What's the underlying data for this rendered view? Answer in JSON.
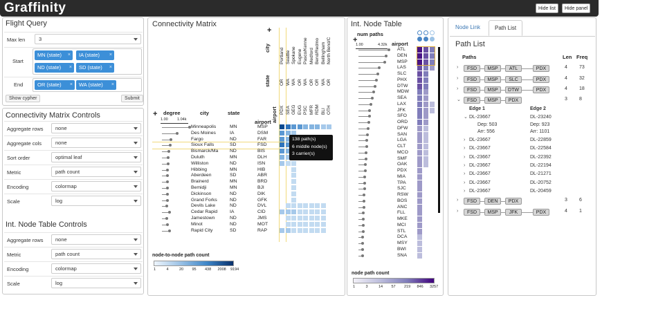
{
  "app": {
    "title": "Graffinity",
    "hide_list": "Hide list",
    "hide_panel": "Hide panel"
  },
  "flight_query": {
    "title": "Flight Query",
    "max_len_label": "Max len",
    "max_len_value": "3",
    "start_label": "Start",
    "start_tags": [
      "MN (state)",
      "IA (state)",
      "ND (state)",
      "SD (state)"
    ],
    "end_label": "End",
    "end_tags": [
      "OR (state)",
      "WA (state)"
    ],
    "show_cypher": "Show cypher",
    "submit": "Submit"
  },
  "cm_controls": {
    "title": "Connectivity Matrix Controls",
    "rows": [
      {
        "label": "Aggregate rows",
        "value": "none"
      },
      {
        "label": "Aggregate cols",
        "value": "none"
      },
      {
        "label": "Sort order",
        "value": "optimal leaf"
      },
      {
        "label": "Metric",
        "value": "path count"
      },
      {
        "label": "Encoding",
        "value": "colormap"
      },
      {
        "label": "Scale",
        "value": "log"
      }
    ]
  },
  "int_controls": {
    "title": "Int. Node Table Controls",
    "rows": [
      {
        "label": "Aggregate rows",
        "value": "none"
      },
      {
        "label": "Metric",
        "value": "path count"
      },
      {
        "label": "Encoding",
        "value": "colormap"
      },
      {
        "label": "Scale",
        "value": "log"
      }
    ]
  },
  "matrix": {
    "title": "Connectivity Matrix",
    "col_headers": {
      "city": "city",
      "state": "state",
      "airport": "airport"
    },
    "columns": [
      {
        "city": "Portland",
        "state": "OR",
        "airport": "PDX"
      },
      {
        "city": "Seattle",
        "state": "WA",
        "airport": "SEA"
      },
      {
        "city": "Spokane",
        "state": "WA",
        "airport": "GEG"
      },
      {
        "city": "Eugene",
        "state": "OR",
        "airport": "EUG"
      },
      {
        "city": "Pasco/Kenne",
        "state": "WA",
        "airport": "PSC"
      },
      {
        "city": "Medford",
        "state": "OR",
        "airport": "MFR"
      },
      {
        "city": "Bend/Redmo",
        "state": "OR",
        "airport": "RDM"
      },
      {
        "city": "Bellingham",
        "state": "WA",
        "airport": "BLI"
      },
      {
        "city": "North Bend/C",
        "state": "OR",
        "airport": "OTH"
      }
    ],
    "row_headers": {
      "degree": "degree",
      "city": "city",
      "state": "state",
      "airport": "airport"
    },
    "degree_ticks": [
      "1.00",
      "1.04k"
    ],
    "rows": [
      {
        "city": "Minneapolis",
        "state": "MN",
        "airport": "MSP",
        "deg": 1.0
      },
      {
        "city": "Des Moines",
        "state": "IA",
        "airport": "DSM",
        "deg": 0.5
      },
      {
        "city": "Fargo",
        "state": "ND",
        "airport": "FAR",
        "deg": 0.25
      },
      {
        "city": "Sioux Falls",
        "state": "SD",
        "airport": "FSD",
        "deg": 0.22
      },
      {
        "city": "Bismarck/Ma",
        "state": "ND",
        "airport": "BIS",
        "deg": 0.18
      },
      {
        "city": "Duluth",
        "state": "MN",
        "airport": "DLH",
        "deg": 0.15
      },
      {
        "city": "Williston",
        "state": "ND",
        "airport": "ISN",
        "deg": 0.14
      },
      {
        "city": "Hibbing",
        "state": "MN",
        "airport": "HIB",
        "deg": 0.12
      },
      {
        "city": "Aberdeen",
        "state": "SD",
        "airport": "ABR",
        "deg": 0.12
      },
      {
        "city": "Brainerd",
        "state": "MN",
        "airport": "BRD",
        "deg": 0.1
      },
      {
        "city": "Bemidji",
        "state": "MN",
        "airport": "BJI",
        "deg": 0.1
      },
      {
        "city": "Dickinson",
        "state": "ND",
        "airport": "DIK",
        "deg": 0.1
      },
      {
        "city": "Grand Forks",
        "state": "ND",
        "airport": "GFK",
        "deg": 0.1
      },
      {
        "city": "Devils Lake",
        "state": "ND",
        "airport": "DVL",
        "deg": 0.09
      },
      {
        "city": "Cedar Rapid",
        "state": "IA",
        "airport": "CID",
        "deg": 0.2
      },
      {
        "city": "Jamestown",
        "state": "ND",
        "airport": "JMS",
        "deg": 0.09
      },
      {
        "city": "Minot",
        "state": "ND",
        "airport": "MOT",
        "deg": 0.12
      },
      {
        "city": "Rapid City",
        "state": "SD",
        "airport": "RAP",
        "deg": 0.2
      }
    ],
    "tooltip": [
      "138 path(s)",
      "6 middle node(s)",
      "3 carrier(s)"
    ],
    "legend_title": "node-to-node path count",
    "legend_ticks": [
      "1",
      "4",
      "20",
      "95",
      "438",
      "2008",
      "9194"
    ]
  },
  "int_table": {
    "title": "Int. Node Table",
    "header": "num paths",
    "ticks": [
      "1.00",
      "4.32k"
    ],
    "airport_header": "airport",
    "airports": [
      "ATL",
      "DEN",
      "MSP",
      "LAS",
      "SLC",
      "PHX",
      "DTW",
      "MDW",
      "SEA",
      "LAX",
      "JFK",
      "SFO",
      "ORD",
      "DFW",
      "SAN",
      "LGA",
      "CLT",
      "MCO",
      "SMF",
      "OAK",
      "PDX",
      "MIA",
      "TPA",
      "SJC",
      "RSW",
      "BOS",
      "ANC",
      "FLL",
      "MKE",
      "MCI",
      "STL",
      "DCA",
      "MSY",
      "BWI",
      "SNA"
    ],
    "legend_title": "node path count",
    "legend_ticks": [
      "1",
      "3",
      "14",
      "57",
      "219",
      "846",
      "3257"
    ]
  },
  "path_list": {
    "tabs": [
      "Node Link",
      "Path List"
    ],
    "title": "Path List",
    "col_paths": "Paths",
    "col_len": "Len",
    "col_freq": "Freq",
    "paths": [
      {
        "nodes": [
          "FSD",
          "MSP",
          "ATL",
          "PDX"
        ],
        "len": "4",
        "freq": "73"
      },
      {
        "nodes": [
          "FSD",
          "MSP",
          "SLC",
          "PDX"
        ],
        "len": "4",
        "freq": "32"
      },
      {
        "nodes": [
          "FSD",
          "MSP",
          "DTW",
          "PDX"
        ],
        "len": "4",
        "freq": "18"
      },
      {
        "nodes": [
          "FSD",
          "MSP",
          "PDX"
        ],
        "len": "3",
        "freq": "8"
      },
      {
        "nodes": [
          "FSD",
          "DEN",
          "PDX"
        ],
        "len": "3",
        "freq": "6"
      },
      {
        "nodes": [
          "FSD",
          "MSP",
          "JFK",
          "PDX"
        ],
        "len": "4",
        "freq": "1"
      }
    ],
    "edge1": "Edge 1",
    "edge2": "Edge 2",
    "expanded": {
      "e1": "DL-23667",
      "e2": "DL-23240",
      "dep1": "Dep: 503",
      "dep2": "Dep: 923",
      "arr1": "Arr: 556",
      "arr2": "Arr: 1101"
    },
    "edge_rows": [
      {
        "e1": "DL-23667",
        "e2": "DL-22859"
      },
      {
        "e1": "DL-23667",
        "e2": "DL-22584"
      },
      {
        "e1": "DL-23667",
        "e2": "DL-22392"
      },
      {
        "e1": "DL-23667",
        "e2": "DL-22194"
      },
      {
        "e1": "DL-23667",
        "e2": "DL-21271"
      },
      {
        "e1": "DL-23667",
        "e2": "DL-20752"
      },
      {
        "e1": "DL-23667",
        "e2": "DL-20459"
      }
    ]
  },
  "colors": {
    "accent": "#3c8fd8",
    "dark_bar": "#2b2b2b",
    "highlight": "#f1d97a",
    "purple": "#5b3a96"
  }
}
